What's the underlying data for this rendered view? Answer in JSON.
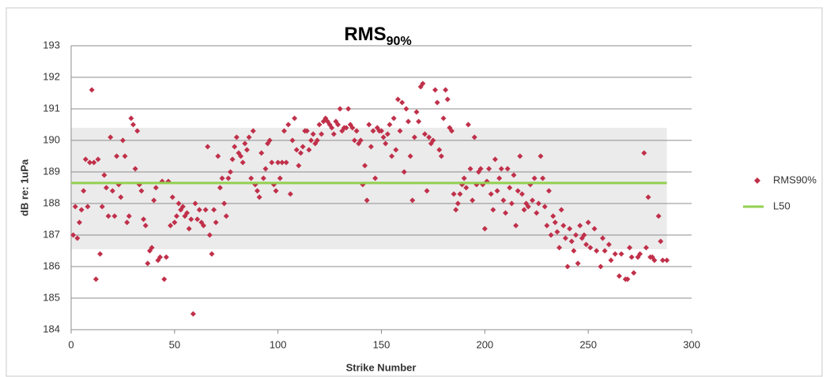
{
  "chart_data": {
    "type": "scatter",
    "title": "RMS",
    "title_subscript": "90%",
    "x_label": "Strike Number",
    "y_label": "dB re: 1uPa",
    "xlim": [
      0,
      300
    ],
    "xticks": [
      0,
      50,
      100,
      150,
      200,
      250,
      300
    ],
    "ylim": [
      184,
      193
    ],
    "yticks": [
      184,
      185,
      186,
      187,
      188,
      189,
      190,
      191,
      192,
      193
    ],
    "grid": true,
    "legend": "right",
    "band": {
      "xlim": [
        0,
        288
      ],
      "ylim": [
        186.55,
        190.4
      ],
      "color": "#ebebeb"
    },
    "series": [
      {
        "name": "RMS90%",
        "color": "#c0304a",
        "marker": "diamond",
        "x": [
          1,
          2,
          3,
          4,
          5,
          6,
          7,
          8,
          9,
          10,
          11,
          12,
          13,
          14,
          15,
          16,
          17,
          18,
          19,
          20,
          21,
          22,
          23,
          24,
          25,
          26,
          27,
          28,
          29,
          30,
          31,
          32,
          33,
          34,
          35,
          36,
          37,
          38,
          39,
          40,
          41,
          42,
          43,
          44,
          45,
          46,
          47,
          48,
          49,
          50,
          51,
          52,
          53,
          54,
          55,
          56,
          57,
          58,
          59,
          60,
          61,
          62,
          63,
          64,
          65,
          66,
          67,
          68,
          69,
          70,
          71,
          72,
          73,
          74,
          75,
          76,
          77,
          78,
          79,
          80,
          81,
          82,
          83,
          84,
          85,
          86,
          87,
          88,
          89,
          90,
          91,
          92,
          93,
          94,
          95,
          96,
          97,
          98,
          99,
          100,
          101,
          102,
          103,
          104,
          105,
          106,
          107,
          108,
          109,
          110,
          111,
          112,
          113,
          114,
          115,
          116,
          117,
          118,
          119,
          120,
          121,
          122,
          123,
          124,
          125,
          126,
          127,
          128,
          129,
          130,
          131,
          132,
          133,
          134,
          135,
          136,
          137,
          138,
          139,
          140,
          141,
          142,
          143,
          144,
          145,
          146,
          147,
          148,
          149,
          150,
          151,
          152,
          153,
          154,
          155,
          156,
          157,
          158,
          159,
          160,
          161,
          162,
          163,
          164,
          165,
          166,
          167,
          168,
          169,
          170,
          171,
          172,
          173,
          174,
          175,
          176,
          177,
          178,
          179,
          180,
          181,
          182,
          183,
          184,
          185,
          186,
          187,
          188,
          189,
          190,
          191,
          192,
          193,
          194,
          195,
          196,
          197,
          198,
          199,
          200,
          201,
          202,
          203,
          204,
          205,
          206,
          207,
          208,
          209,
          210,
          211,
          212,
          213,
          214,
          215,
          216,
          217,
          218,
          219,
          220,
          221,
          222,
          223,
          224,
          225,
          226,
          227,
          228,
          229,
          230,
          231,
          232,
          233,
          234,
          235,
          236,
          237,
          238,
          239,
          240,
          241,
          242,
          243,
          244,
          245,
          246,
          247,
          248,
          249,
          250,
          251,
          253,
          254,
          256,
          257,
          258,
          260,
          261,
          263,
          265,
          266,
          268,
          269,
          270,
          271,
          272,
          274,
          275,
          277,
          278,
          279,
          280,
          281,
          282,
          284,
          285,
          286,
          288
        ],
        "values": [
          187.0,
          187.9,
          186.9,
          187.4,
          187.8,
          188.4,
          189.4,
          187.9,
          189.3,
          191.6,
          189.3,
          185.6,
          189.4,
          186.4,
          187.9,
          188.9,
          188.5,
          187.6,
          190.1,
          188.4,
          187.6,
          189.5,
          188.6,
          188.2,
          190.0,
          189.5,
          187.4,
          187.6,
          190.7,
          190.5,
          189.1,
          190.3,
          188.6,
          188.4,
          187.5,
          187.3,
          186.1,
          186.5,
          186.6,
          188.1,
          188.5,
          186.2,
          186.3,
          188.7,
          185.6,
          186.3,
          188.7,
          187.3,
          188.2,
          187.4,
          187.6,
          188.0,
          187.8,
          187.9,
          187.6,
          187.7,
          187.2,
          187.5,
          184.5,
          188.0,
          187.5,
          187.8,
          187.4,
          187.3,
          187.8,
          189.8,
          187.0,
          186.4,
          187.8,
          187.4,
          189.5,
          188.5,
          188.8,
          188.0,
          187.6,
          188.8,
          189.0,
          189.4,
          189.8,
          190.1,
          189.6,
          189.5,
          189.3,
          189.9,
          189.7,
          190.1,
          188.8,
          190.3,
          188.6,
          188.4,
          188.2,
          189.6,
          188.8,
          189.1,
          189.9,
          190.0,
          189.3,
          188.6,
          188.4,
          189.3,
          188.8,
          189.3,
          190.3,
          189.3,
          190.5,
          188.3,
          190.0,
          190.7,
          189.7,
          189.2,
          189.6,
          189.8,
          190.3,
          190.3,
          189.7,
          190.0,
          190.2,
          189.9,
          190.0,
          190.5,
          190.2,
          190.6,
          190.7,
          190.6,
          190.5,
          190.4,
          190.2,
          190.6,
          190.5,
          191.0,
          190.3,
          190.4,
          190.4,
          191.0,
          190.5,
          190.4,
          190.0,
          190.3,
          189.9,
          190.0,
          188.6,
          189.2,
          188.1,
          190.5,
          189.8,
          190.3,
          188.8,
          190.4,
          190.3,
          190.3,
          190.1,
          189.9,
          190.2,
          190.5,
          189.5,
          190.7,
          189.7,
          191.3,
          190.3,
          191.2,
          189.0,
          191.0,
          190.6,
          189.5,
          188.1,
          190.1,
          190.9,
          190.6,
          191.7,
          191.8,
          190.2,
          188.4,
          190.1,
          189.9,
          190.0,
          191.6,
          191.2,
          189.7,
          189.5,
          190.7,
          191.6,
          191.3,
          190.4,
          190.3,
          188.3,
          187.8,
          188.0,
          188.3,
          188.6,
          188.8,
          188.5,
          190.5,
          189.1,
          188.1,
          190.1,
          188.6,
          189.0,
          189.1,
          188.6,
          187.2,
          188.7,
          189.1,
          188.3,
          187.8,
          189.4,
          188.4,
          188.8,
          189.1,
          188.1,
          187.7,
          189.1,
          188.5,
          188.0,
          188.9,
          187.3,
          188.4,
          189.5,
          188.3,
          187.8,
          188.0,
          187.9,
          188.6,
          188.1,
          188.8,
          187.7,
          188.0,
          189.5,
          188.8,
          187.9,
          187.3,
          188.4,
          187.0,
          187.6,
          187.4,
          187.1,
          186.6,
          187.8,
          187.3,
          186.9,
          186.0,
          187.2,
          186.8,
          186.5,
          187.0,
          186.1,
          187.3,
          186.9,
          187.0,
          186.7,
          187.4,
          186.6,
          187.2,
          186.5,
          186.0,
          186.9,
          186.5,
          186.7,
          186.2,
          186.4,
          185.7,
          186.4,
          185.6,
          185.6,
          186.6,
          186.3,
          185.8,
          186.3,
          186.4,
          189.6,
          186.6,
          188.2,
          186.3,
          186.3,
          186.2,
          187.6,
          186.8,
          186.2,
          186.2
        ]
      },
      {
        "name": "L50",
        "color": "#92d050",
        "type": "line",
        "x": [
          0,
          288
        ],
        "values": [
          188.65,
          188.65
        ]
      }
    ]
  }
}
